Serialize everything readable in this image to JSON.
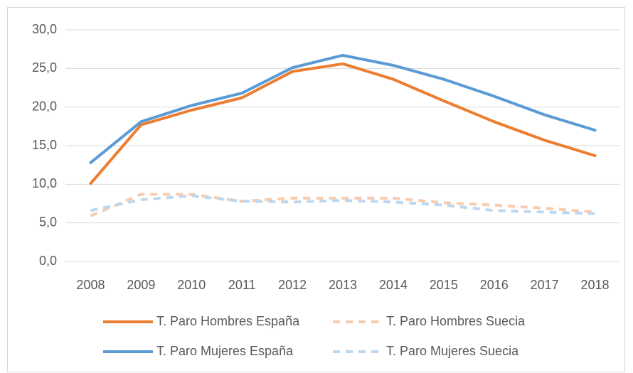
{
  "chart_data": {
    "type": "line",
    "x": [
      "2008",
      "2009",
      "2010",
      "2011",
      "2012",
      "2013",
      "2014",
      "2015",
      "2016",
      "2017",
      "2018"
    ],
    "series": [
      {
        "name": "T. Paro Hombres España",
        "color": "#ED7D31",
        "dashed": false,
        "values": [
          10.1,
          17.7,
          19.6,
          21.2,
          24.6,
          25.6,
          23.6,
          20.8,
          18.1,
          15.7,
          13.7
        ]
      },
      {
        "name": "T. Paro Hombres Suecia",
        "color": "#F8CBAD",
        "dashed": true,
        "values": [
          5.9,
          8.7,
          8.7,
          7.8,
          8.2,
          8.2,
          8.2,
          7.6,
          7.3,
          6.9,
          6.4
        ]
      },
      {
        "name": "T. Paro Mujeres España",
        "color": "#5B9BD5",
        "dashed": false,
        "values": [
          12.8,
          18.1,
          20.2,
          21.8,
          25.1,
          26.7,
          25.4,
          23.6,
          21.4,
          19.0,
          17.0
        ]
      },
      {
        "name": "T. Paro Mujeres Suecia",
        "color": "#BDD7EE",
        "dashed": true,
        "values": [
          6.6,
          8.0,
          8.5,
          7.8,
          7.7,
          7.9,
          7.7,
          7.3,
          6.6,
          6.4,
          6.2
        ]
      }
    ],
    "ylim": [
      0,
      30
    ],
    "yticks": [
      {
        "value": 0,
        "label": "0,0"
      },
      {
        "value": 5,
        "label": "5,0"
      },
      {
        "value": 10,
        "label": "10,0"
      },
      {
        "value": 15,
        "label": "15,0"
      },
      {
        "value": 20,
        "label": "20,0"
      },
      {
        "value": 25,
        "label": "25,0"
      },
      {
        "value": 30,
        "label": "30,0"
      }
    ],
    "grid": true,
    "legend": "bottom"
  }
}
